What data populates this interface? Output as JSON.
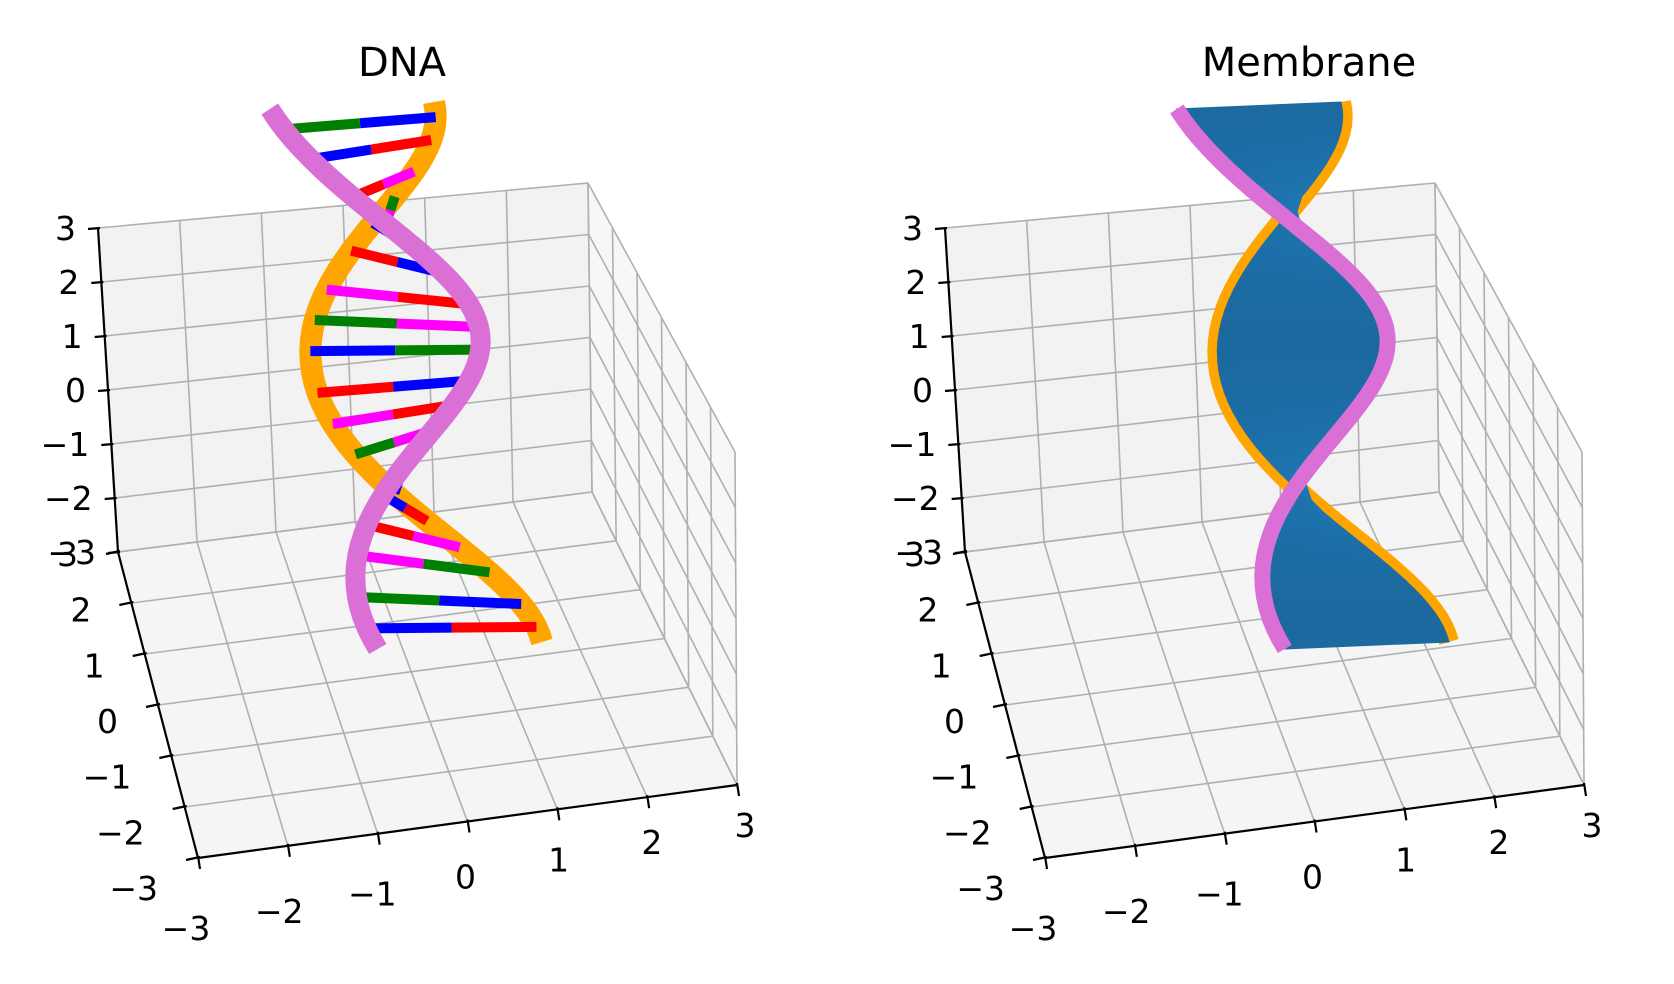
{
  "chart_data": [
    {
      "type": "3d-line",
      "title": "DNA",
      "xlim": [
        -3,
        3
      ],
      "ylim": [
        -3,
        3
      ],
      "zlim": [
        -3,
        3
      ],
      "xticks": [
        "−3",
        "−2",
        "−1",
        "0",
        "1",
        "2",
        "3"
      ],
      "yticks": [
        "−3",
        "−2",
        "−1",
        "0",
        "1",
        "2",
        "3"
      ],
      "zticks": [
        "−3",
        "−2",
        "−1",
        "0",
        "1",
        "2",
        "3"
      ],
      "grid": true,
      "helix": {
        "radius": 1.6,
        "turns": 1,
        "z_range": [
          -3,
          3
        ],
        "strand_offset_deg": 150
      },
      "series": [
        {
          "color": "#ffa500",
          "kind": "backbone-strand-1"
        },
        {
          "color": "#da70d6",
          "kind": "backbone-strand-2"
        },
        {
          "color": "#ff0000",
          "kind": "base-pair"
        },
        {
          "color": "#0000ff",
          "kind": "base-pair"
        },
        {
          "color": "#008000",
          "kind": "base-pair"
        },
        {
          "color": "#ff00ff",
          "kind": "base-pair"
        }
      ]
    },
    {
      "type": "3d-surface",
      "title": "Membrane",
      "xlim": [
        -3,
        3
      ],
      "ylim": [
        -3,
        3
      ],
      "zlim": [
        -3,
        3
      ],
      "xticks": [
        "−3",
        "−2",
        "−1",
        "0",
        "1",
        "2",
        "3"
      ],
      "yticks": [
        "−3",
        "−2",
        "−1",
        "0",
        "1",
        "2",
        "3"
      ],
      "zticks": [
        "−3",
        "−2",
        "−1",
        "0",
        "1",
        "2",
        "3"
      ],
      "grid": true,
      "series": [
        {
          "color": "#ffa500",
          "kind": "edge-strand-1"
        },
        {
          "color": "#da70d6",
          "kind": "edge-strand-2"
        },
        {
          "color": "#1f77b4",
          "kind": "surface"
        }
      ]
    }
  ]
}
